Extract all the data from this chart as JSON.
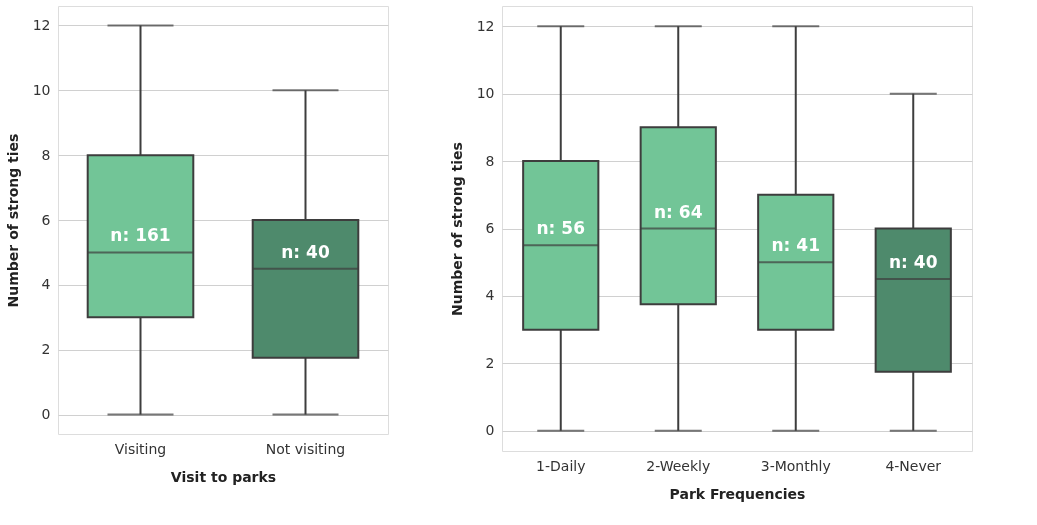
{
  "chart_data": [
    {
      "type": "box",
      "xlabel": "Visit to parks",
      "ylabel": "Number of strong ties",
      "categories": [
        "Visiting",
        "Not visiting"
      ],
      "boxes": [
        {
          "low": 0,
          "q1": 3,
          "median": 5,
          "q3": 8,
          "high": 12
        },
        {
          "low": 0,
          "q1": 1.75,
          "median": 4.5,
          "q3": 6,
          "high": 10
        }
      ],
      "colors": [
        "#72c597",
        "#4e8a6c"
      ],
      "ylim": [
        -0.6,
        12.6
      ],
      "yticks": [
        0,
        2,
        4,
        6,
        8,
        10,
        12
      ],
      "grid": "y",
      "annotations": [
        "n: 161",
        "n: 40"
      ]
    },
    {
      "type": "box",
      "xlabel": "Park Frequencies",
      "ylabel": "Number of strong ties",
      "categories": [
        "1-Daily",
        "2-Weekly",
        "3-Monthly",
        "4-Never"
      ],
      "boxes": [
        {
          "low": 0,
          "q1": 3,
          "median": 5.5,
          "q3": 8,
          "high": 12
        },
        {
          "low": 0,
          "q1": 3.75,
          "median": 6,
          "q3": 9,
          "high": 12
        },
        {
          "low": 0,
          "q1": 3,
          "median": 5,
          "q3": 7,
          "high": 12
        },
        {
          "low": 0,
          "q1": 1.75,
          "median": 4.5,
          "q3": 6,
          "high": 10
        }
      ],
      "colors": [
        "#72c597",
        "#72c597",
        "#72c597",
        "#4e8a6c"
      ],
      "ylim": [
        -0.6,
        12.6
      ],
      "yticks": [
        0,
        2,
        4,
        6,
        8,
        10,
        12
      ],
      "grid": "y",
      "annotations": [
        "n: 56",
        "n: 64",
        "n: 41",
        "n: 40"
      ]
    }
  ]
}
